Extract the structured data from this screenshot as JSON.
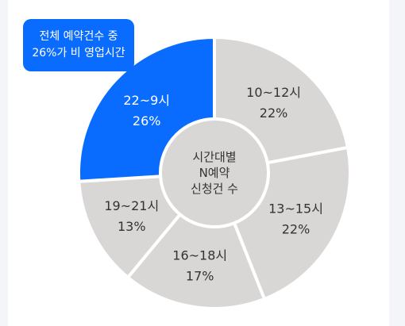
{
  "callout": {
    "line1": "전체 예약건수 중",
    "line2": "26%가 비 영업시간"
  },
  "chart_data": {
    "type": "pie",
    "center_label": [
      "시간대별",
      "N예약",
      "신청건 수"
    ],
    "slices": [
      {
        "label": "10~12시",
        "value": 22,
        "value_label": "22%",
        "color": "#d9d6d6"
      },
      {
        "label": "13~15시",
        "value": 22,
        "value_label": "22%",
        "color": "#d9d6d6"
      },
      {
        "label": "16~18시",
        "value": 17,
        "value_label": "17%",
        "color": "#d9d6d6"
      },
      {
        "label": "19~21시",
        "value": 13,
        "value_label": "13%",
        "color": "#d9d6d6"
      },
      {
        "label": "22~9시",
        "value": 26,
        "value_label": "26%",
        "color": "#0a6cff"
      }
    ]
  },
  "colors": {
    "accent": "#0a6cff",
    "slice_gray": "#d9d6d6",
    "separator": "#ffffff",
    "center_fill": "#d9d6d6",
    "text_dark": "#333333",
    "text_light": "#ffffff"
  }
}
